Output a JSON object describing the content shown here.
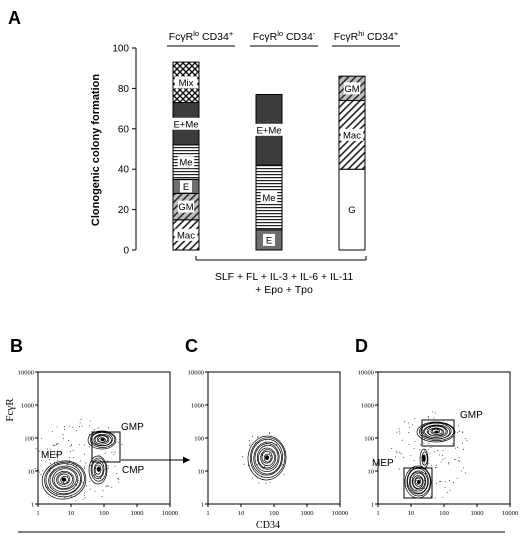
{
  "panel_a": {
    "label": "A",
    "groups": [
      {
        "title": "FcγR",
        "sup": "lo",
        "rest": " CD34",
        "sup2": "+"
      },
      {
        "title": "FcγR",
        "sup": "lo",
        "rest": " CD34",
        "sup2": "-"
      },
      {
        "title": "FcγR",
        "sup": "hi",
        "rest": " CD34",
        "sup2": "+"
      }
    ],
    "conditions": [
      "SLF + FL + IL-3 + IL-6 + IL-11",
      "+ Epo + Tpo"
    ]
  },
  "panel_b": {
    "label": "B",
    "gates": {
      "mep": "MEP",
      "gmp": "GMP",
      "cmp": "CMP"
    }
  },
  "panel_c": {
    "label": "C"
  },
  "panel_d": {
    "label": "D",
    "gates": {
      "mep": "MEP",
      "gmp": "GMP"
    }
  },
  "flow_axes": {
    "ylabel": "FcγR",
    "xlabel": "CD34",
    "ticks": [
      "1",
      "10",
      "100",
      "1000",
      "10000"
    ]
  },
  "chart_data": [
    {
      "type": "bar",
      "stacked": true,
      "ylabel": "Clonogenic colony formation",
      "ylim": [
        0,
        100
      ],
      "yticks": [
        0,
        20,
        40,
        60,
        80,
        100
      ],
      "categories": [
        "FcγRlo CD34+",
        "FcγRlo CD34-",
        "FcγRhi CD34+"
      ],
      "series": [
        {
          "name": "Mac",
          "values": [
            15,
            0,
            34
          ],
          "label_visible": [
            true,
            false,
            true
          ]
        },
        {
          "name": "GM",
          "values": [
            13,
            0,
            12
          ],
          "label_visible": [
            true,
            false,
            true
          ]
        },
        {
          "name": "E",
          "values": [
            7,
            10,
            0
          ],
          "label_visible": [
            true,
            true,
            false
          ]
        },
        {
          "name": "Me",
          "values": [
            17,
            32,
            0
          ],
          "label_visible": [
            true,
            true,
            false
          ]
        },
        {
          "name": "E+Me",
          "values": [
            21,
            35,
            0
          ],
          "label_visible": [
            true,
            true,
            false
          ]
        },
        {
          "name": "Mix",
          "values": [
            20,
            0,
            0
          ],
          "label_visible": [
            true,
            false,
            false
          ]
        },
        {
          "name": "G",
          "values": [
            0,
            0,
            40
          ],
          "label_visible": [
            false,
            false,
            true
          ]
        }
      ],
      "stack_order": [
        [
          "Mac",
          "GM",
          "E",
          "Me",
          "E+Me",
          "Mix"
        ],
        [
          "E",
          "Me",
          "E+Me"
        ],
        [
          "G",
          "Mac",
          "GM"
        ]
      ]
    }
  ]
}
